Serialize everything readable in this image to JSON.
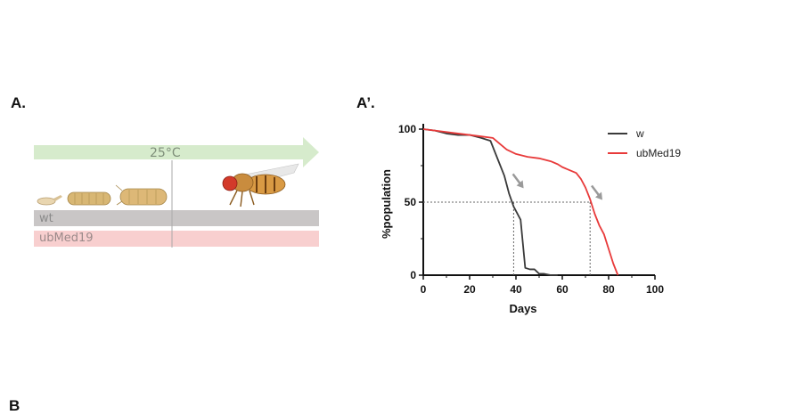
{
  "figure": {
    "panel_a_label": "A.",
    "panel_a2_label": "A’.",
    "panel_b_label": "B",
    "panel_a": {
      "temperature": "25°C",
      "genotypes": [
        "wt",
        "ubMed19"
      ],
      "colors": {
        "arrow": "#d6ebcc",
        "wt_bar": "#c9c6c6",
        "med_bar": "#f8cfcf"
      },
      "illustrations": [
        "egg-icon",
        "larva-icon",
        "pupa-icon",
        "adult-fly-icon"
      ]
    }
  },
  "chart_data": {
    "type": "line",
    "title": "",
    "xlabel": "Days",
    "ylabel": "%population",
    "xlim": [
      0,
      100
    ],
    "ylim": [
      0,
      100
    ],
    "xticks": [
      0,
      20,
      40,
      60,
      80,
      100
    ],
    "yticks": [
      0,
      50,
      100
    ],
    "legend_position": "top-right",
    "series": [
      {
        "name": "w",
        "color": "#3a3a3a",
        "x": [
          0,
          5,
          10,
          15,
          20,
          25,
          29,
          31,
          33,
          35,
          37,
          39,
          42,
          44,
          46,
          48,
          50,
          52,
          55,
          58
        ],
        "y": [
          100,
          99,
          97,
          96,
          96,
          94,
          92,
          84,
          76,
          68,
          56,
          47,
          38,
          5,
          4,
          4,
          1,
          1,
          0,
          0
        ]
      },
      {
        "name": "ubMed19",
        "color": "#e83a3a",
        "x": [
          0,
          5,
          10,
          15,
          20,
          25,
          30,
          33,
          36,
          40,
          45,
          50,
          55,
          58,
          60,
          63,
          66,
          68,
          70,
          72,
          74,
          76,
          78,
          80,
          82,
          84
        ],
        "y": [
          100,
          99,
          98,
          97,
          96,
          95,
          94,
          90,
          86,
          83,
          81,
          80,
          78,
          76,
          74,
          72,
          70,
          66,
          60,
          52,
          42,
          34,
          28,
          18,
          8,
          0
        ]
      }
    ],
    "reference_lines": {
      "y": 50,
      "x": [
        39,
        72
      ]
    },
    "annotations": [
      "arrow at w median",
      "arrow at ubMed19 median"
    ]
  }
}
